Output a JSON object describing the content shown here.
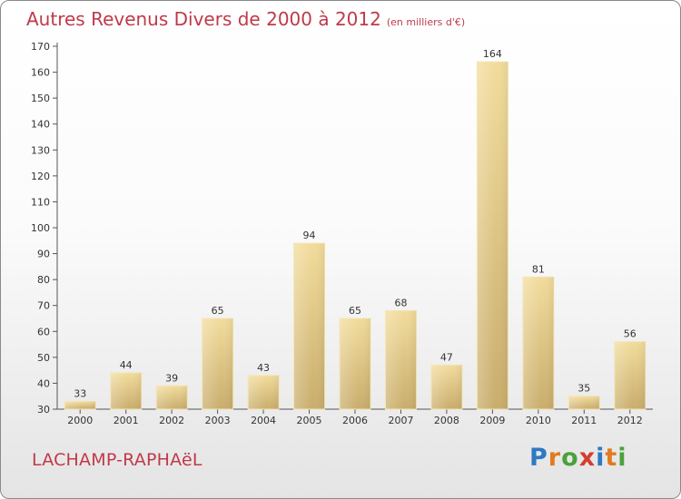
{
  "header": {
    "title": "Autres Revenus Divers de 2000 à 2012",
    "subtitle": "(en milliers d'€)"
  },
  "footer": {
    "commune": "LACHAMP-RAPHAëL",
    "logo_letters": [
      {
        "ch": "P",
        "color": "#2e79c2"
      },
      {
        "ch": "r",
        "color": "#e07b22"
      },
      {
        "ch": "o",
        "color": "#4aa23a"
      },
      {
        "ch": "x",
        "color": "#d63c2f"
      },
      {
        "ch": "i",
        "color": "#2e79c2"
      },
      {
        "ch": "t",
        "color": "#e07b22"
      },
      {
        "ch": "i",
        "color": "#4aa23a"
      }
    ]
  },
  "chart_data": {
    "type": "bar",
    "title": "Autres Revenus Divers de 2000 à 2012",
    "subtitle": "(en milliers d'€)",
    "categories": [
      "2000",
      "2001",
      "2002",
      "2003",
      "2004",
      "2005",
      "2006",
      "2007",
      "2008",
      "2009",
      "2010",
      "2011",
      "2012"
    ],
    "values": [
      33,
      44,
      39,
      65,
      43,
      94,
      65,
      68,
      47,
      164,
      81,
      35,
      56
    ],
    "ylim": [
      30,
      170
    ],
    "yticks": [
      30,
      40,
      50,
      60,
      70,
      80,
      90,
      100,
      110,
      120,
      130,
      140,
      150,
      160,
      170
    ],
    "grid": false,
    "bar_color": "#e9cc86"
  }
}
